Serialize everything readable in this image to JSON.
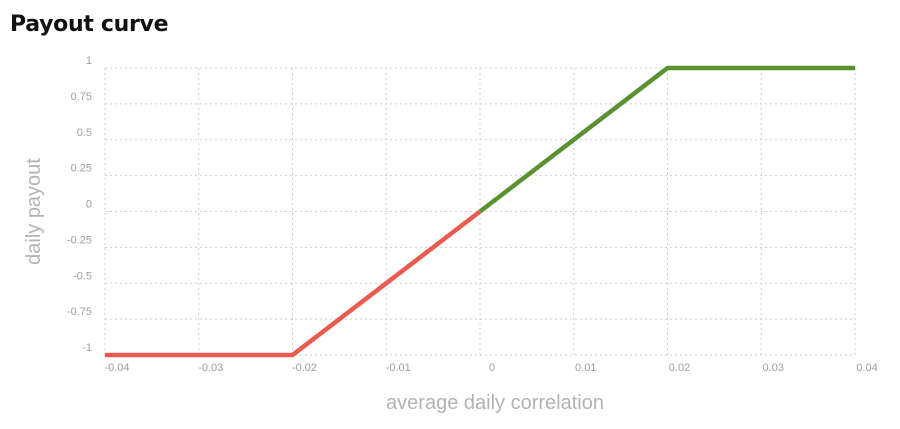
{
  "chart_data": {
    "type": "line",
    "title": "Payout curve",
    "xlabel": "average daily correlation",
    "ylabel": "daily payout",
    "xlim": [
      -0.04,
      0.04
    ],
    "ylim": [
      -1,
      1
    ],
    "x_ticks": [
      -0.04,
      -0.03,
      -0.02,
      -0.01,
      0,
      0.01,
      0.02,
      0.03,
      0.04
    ],
    "x_tick_labels": [
      "-0.04",
      "-0.03",
      "-0.02",
      "-0.01",
      "0",
      "0.01",
      "0.02",
      "0.03",
      "0.04"
    ],
    "y_ticks": [
      1,
      0.75,
      0.5,
      0.25,
      0,
      -0.25,
      -0.5,
      -0.75,
      -1
    ],
    "y_tick_labels": [
      "1",
      "0.75",
      "0.5",
      "0.25",
      "0",
      "-0.25",
      "-0.5",
      "-0.75",
      "-1"
    ],
    "grid": true,
    "series": [
      {
        "color": "#e95b4f",
        "x": [
          -0.04,
          -0.02,
          0
        ],
        "y": [
          -1,
          -1,
          0
        ]
      },
      {
        "color": "#5a9232",
        "x": [
          0,
          0.02,
          0.04
        ],
        "y": [
          0,
          1,
          1
        ]
      }
    ]
  }
}
